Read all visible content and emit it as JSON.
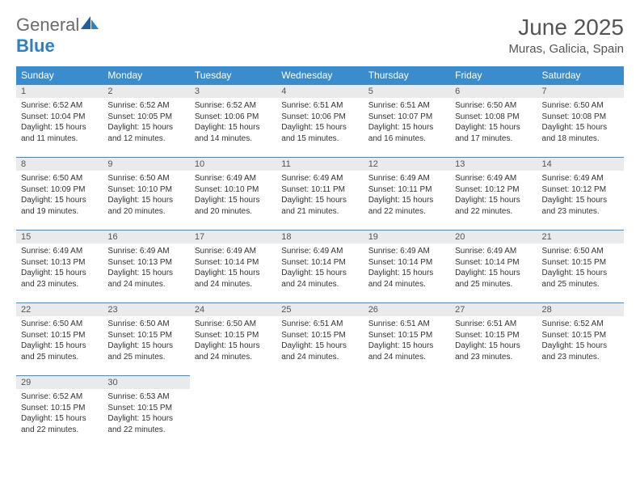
{
  "logo": {
    "text_general": "General",
    "text_blue": "Blue"
  },
  "title": "June 2025",
  "location": "Muras, Galicia, Spain",
  "columns": [
    "Sunday",
    "Monday",
    "Tuesday",
    "Wednesday",
    "Thursday",
    "Friday",
    "Saturday"
  ],
  "colors": {
    "header_bg": "#3a8ccc",
    "header_text": "#ffffff",
    "daynum_bg": "#e8eaec",
    "cell_border": "#3a8ccc",
    "logo_gray": "#6b6b6b",
    "logo_blue": "#2f7fc4"
  },
  "days": [
    {
      "n": 1,
      "sunrise": "6:52 AM",
      "sunset": "10:04 PM",
      "dl_h": 15,
      "dl_m": 11
    },
    {
      "n": 2,
      "sunrise": "6:52 AM",
      "sunset": "10:05 PM",
      "dl_h": 15,
      "dl_m": 12
    },
    {
      "n": 3,
      "sunrise": "6:52 AM",
      "sunset": "10:06 PM",
      "dl_h": 15,
      "dl_m": 14
    },
    {
      "n": 4,
      "sunrise": "6:51 AM",
      "sunset": "10:06 PM",
      "dl_h": 15,
      "dl_m": 15
    },
    {
      "n": 5,
      "sunrise": "6:51 AM",
      "sunset": "10:07 PM",
      "dl_h": 15,
      "dl_m": 16
    },
    {
      "n": 6,
      "sunrise": "6:50 AM",
      "sunset": "10:08 PM",
      "dl_h": 15,
      "dl_m": 17
    },
    {
      "n": 7,
      "sunrise": "6:50 AM",
      "sunset": "10:08 PM",
      "dl_h": 15,
      "dl_m": 18
    },
    {
      "n": 8,
      "sunrise": "6:50 AM",
      "sunset": "10:09 PM",
      "dl_h": 15,
      "dl_m": 19
    },
    {
      "n": 9,
      "sunrise": "6:50 AM",
      "sunset": "10:10 PM",
      "dl_h": 15,
      "dl_m": 20
    },
    {
      "n": 10,
      "sunrise": "6:49 AM",
      "sunset": "10:10 PM",
      "dl_h": 15,
      "dl_m": 20
    },
    {
      "n": 11,
      "sunrise": "6:49 AM",
      "sunset": "10:11 PM",
      "dl_h": 15,
      "dl_m": 21
    },
    {
      "n": 12,
      "sunrise": "6:49 AM",
      "sunset": "10:11 PM",
      "dl_h": 15,
      "dl_m": 22
    },
    {
      "n": 13,
      "sunrise": "6:49 AM",
      "sunset": "10:12 PM",
      "dl_h": 15,
      "dl_m": 22
    },
    {
      "n": 14,
      "sunrise": "6:49 AM",
      "sunset": "10:12 PM",
      "dl_h": 15,
      "dl_m": 23
    },
    {
      "n": 15,
      "sunrise": "6:49 AM",
      "sunset": "10:13 PM",
      "dl_h": 15,
      "dl_m": 23
    },
    {
      "n": 16,
      "sunrise": "6:49 AM",
      "sunset": "10:13 PM",
      "dl_h": 15,
      "dl_m": 24
    },
    {
      "n": 17,
      "sunrise": "6:49 AM",
      "sunset": "10:14 PM",
      "dl_h": 15,
      "dl_m": 24
    },
    {
      "n": 18,
      "sunrise": "6:49 AM",
      "sunset": "10:14 PM",
      "dl_h": 15,
      "dl_m": 24
    },
    {
      "n": 19,
      "sunrise": "6:49 AM",
      "sunset": "10:14 PM",
      "dl_h": 15,
      "dl_m": 24
    },
    {
      "n": 20,
      "sunrise": "6:49 AM",
      "sunset": "10:14 PM",
      "dl_h": 15,
      "dl_m": 25
    },
    {
      "n": 21,
      "sunrise": "6:50 AM",
      "sunset": "10:15 PM",
      "dl_h": 15,
      "dl_m": 25
    },
    {
      "n": 22,
      "sunrise": "6:50 AM",
      "sunset": "10:15 PM",
      "dl_h": 15,
      "dl_m": 25
    },
    {
      "n": 23,
      "sunrise": "6:50 AM",
      "sunset": "10:15 PM",
      "dl_h": 15,
      "dl_m": 25
    },
    {
      "n": 24,
      "sunrise": "6:50 AM",
      "sunset": "10:15 PM",
      "dl_h": 15,
      "dl_m": 24
    },
    {
      "n": 25,
      "sunrise": "6:51 AM",
      "sunset": "10:15 PM",
      "dl_h": 15,
      "dl_m": 24
    },
    {
      "n": 26,
      "sunrise": "6:51 AM",
      "sunset": "10:15 PM",
      "dl_h": 15,
      "dl_m": 24
    },
    {
      "n": 27,
      "sunrise": "6:51 AM",
      "sunset": "10:15 PM",
      "dl_h": 15,
      "dl_m": 23
    },
    {
      "n": 28,
      "sunrise": "6:52 AM",
      "sunset": "10:15 PM",
      "dl_h": 15,
      "dl_m": 23
    },
    {
      "n": 29,
      "sunrise": "6:52 AM",
      "sunset": "10:15 PM",
      "dl_h": 15,
      "dl_m": 22
    },
    {
      "n": 30,
      "sunrise": "6:53 AM",
      "sunset": "10:15 PM",
      "dl_h": 15,
      "dl_m": 22
    }
  ],
  "labels": {
    "sunrise": "Sunrise:",
    "sunset": "Sunset:",
    "daylight": "Daylight:",
    "hours": "hours",
    "and": "and",
    "minutes": "minutes."
  }
}
